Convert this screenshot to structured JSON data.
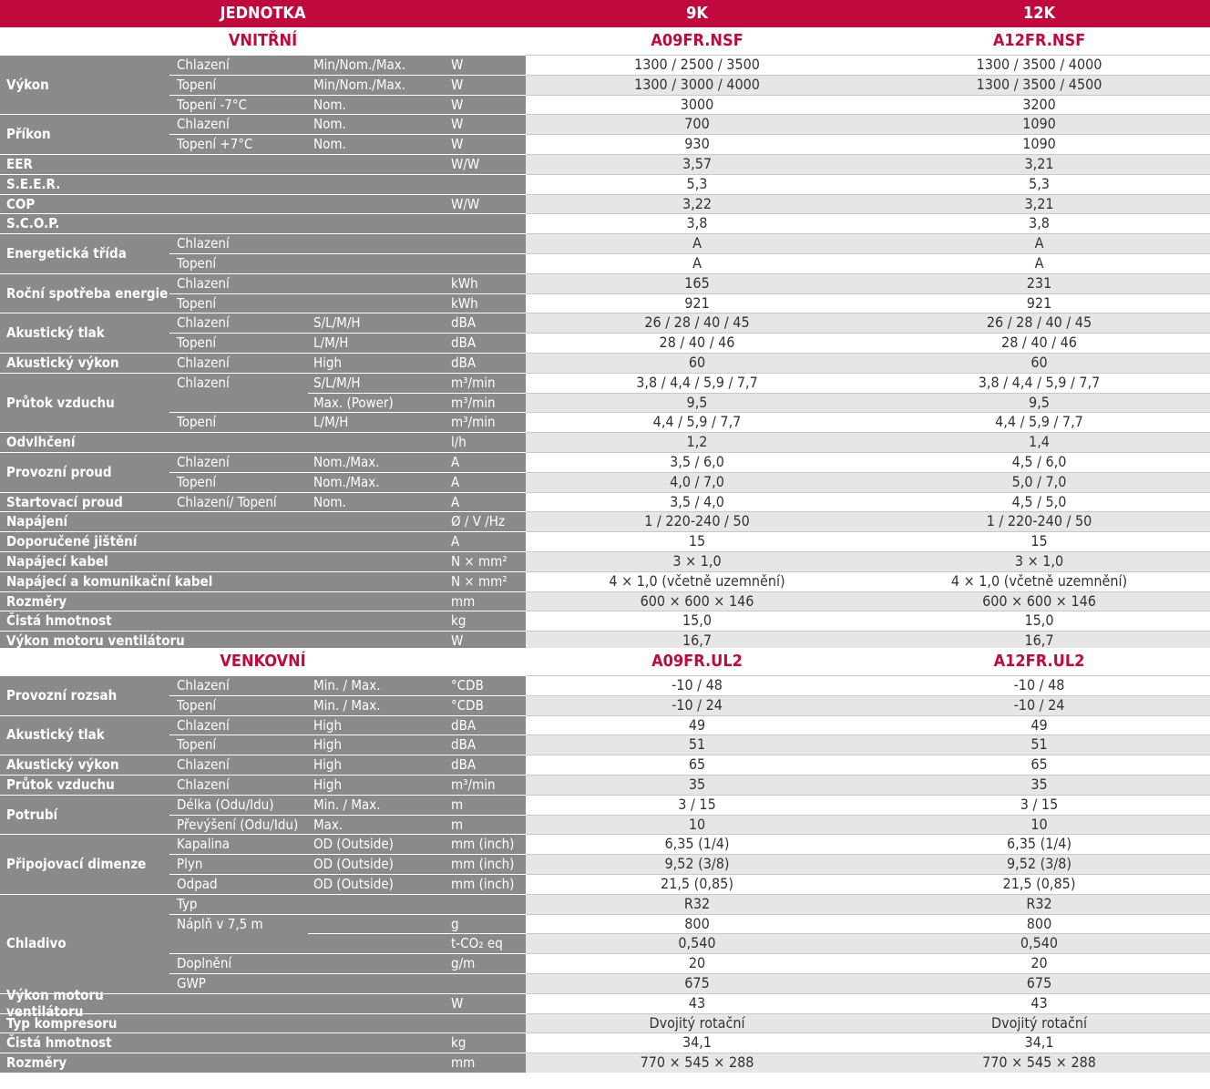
{
  "header": {
    "unit_label": "JEDNOTKA",
    "col1": "9K",
    "col2": "12K"
  },
  "indoor": {
    "title": "VNITŘNÍ",
    "model1": "A09FR.NSF",
    "model2": "A12FR.NSF",
    "rows": [
      {
        "g": "Výkon",
        "l1": "Chlazení",
        "l2": "Min/Nom./Max.",
        "u": "W",
        "v1": "1300 / 2500 / 3500",
        "v2": "1300 / 3500 / 4000"
      },
      {
        "g": "",
        "l1": "Topení",
        "l2": "Min/Nom./Max.",
        "u": "W",
        "v1": "1300 / 3000 / 4000",
        "v2": "1300 / 3500 / 4500"
      },
      {
        "g": "",
        "l1": "Topení -7°C",
        "l2": "Nom.",
        "u": "W",
        "v1": "3000",
        "v2": "3200"
      },
      {
        "g": "Příkon",
        "l1": "Chlazení",
        "l2": "Nom.",
        "u": "W",
        "v1": "700",
        "v2": "1090"
      },
      {
        "g": "",
        "l1": "Topení +7°C",
        "l2": "Nom.",
        "u": "W",
        "v1": "930",
        "v2": "1090"
      },
      {
        "g": "EER",
        "l1": "",
        "l2": "",
        "u": "W/W",
        "v1": "3,57",
        "v2": "3,21"
      },
      {
        "g": "S.E.E.R.",
        "l1": "",
        "l2": "",
        "u": "",
        "v1": "5,3",
        "v2": "5,3"
      },
      {
        "g": "COP",
        "l1": "",
        "l2": "",
        "u": "W/W",
        "v1": "3,22",
        "v2": "3,21"
      },
      {
        "g": "S.C.O.P.",
        "l1": "",
        "l2": "",
        "u": "",
        "v1": "3,8",
        "v2": "3,8"
      },
      {
        "g": "Energetická třída",
        "l1": "Chlazení",
        "l2": "",
        "u": "",
        "v1": "A",
        "v2": "A"
      },
      {
        "g": "",
        "l1": "Topení",
        "l2": "",
        "u": "",
        "v1": "A",
        "v2": "A"
      },
      {
        "g": "Roční spotřeba energie",
        "l1": "Chlazení",
        "l2": "",
        "u": "kWh",
        "v1": "165",
        "v2": "231"
      },
      {
        "g": "",
        "l1": "Topení",
        "l2": "",
        "u": "kWh",
        "v1": "921",
        "v2": "921"
      },
      {
        "g": "Akustický tlak",
        "l1": "Chlazení",
        "l2": "S/L/M/H",
        "u": "dBA",
        "v1": "26 / 28 / 40 / 45",
        "v2": "26 / 28 / 40 / 45"
      },
      {
        "g": "",
        "l1": "Topení",
        "l2": "L/M/H",
        "u": "dBA",
        "v1": "28 / 40 / 46",
        "v2": "28 / 40 / 46"
      },
      {
        "g": "Akustický výkon",
        "l1": "Chlazení",
        "l2": "High",
        "u": "dBA",
        "v1": "60",
        "v2": "60"
      },
      {
        "g": "Průtok vzduchu",
        "l1": "Chlazení",
        "l2": "S/L/M/H",
        "u": "m³/min",
        "v1": "3,8 / 4,4 / 5,9 / 7,7",
        "v2": "3,8 / 4,4 / 5,9 / 7,7"
      },
      {
        "g": "",
        "l1": "",
        "l2": "Max. (Power)",
        "u": "m³/min",
        "v1": "9,5",
        "v2": "9,5"
      },
      {
        "g": "",
        "l1": "Topení",
        "l2": "L/M/H",
        "u": "m³/min",
        "v1": "4,4 / 5,9 / 7,7",
        "v2": "4,4 / 5,9 / 7,7"
      },
      {
        "g": "Odvlhčení",
        "l1": "",
        "l2": "",
        "u": "l/h",
        "v1": "1,2",
        "v2": "1,4"
      },
      {
        "g": "Provozní proud",
        "l1": "Chlazení",
        "l2": "Nom./Max.",
        "u": "A",
        "v1": "3,5 / 6,0",
        "v2": "4,5 / 6,0"
      },
      {
        "g": "",
        "l1": "Topení",
        "l2": "Nom./Max.",
        "u": "A",
        "v1": "4,0 / 7,0",
        "v2": "5,0 / 7,0"
      },
      {
        "g": "Startovací proud",
        "l1": "Chlazení/ Topení",
        "l2": "Nom.",
        "u": "A",
        "v1": "3,5 / 4,0",
        "v2": "4,5 / 5,0"
      },
      {
        "g": "Napájení",
        "l1": "",
        "l2": "",
        "u": "Ø / V /Hz",
        "v1": "1 / 220-240 / 50",
        "v2": "1 / 220-240 / 50"
      },
      {
        "g": "Doporučené jištění",
        "l1": "",
        "l2": "",
        "u": "A",
        "v1": "15",
        "v2": "15"
      },
      {
        "g": "Napájecí kabel",
        "l1": "",
        "l2": "",
        "u": "N × mm²",
        "v1": "3 × 1,0",
        "v2": "3 × 1,0"
      },
      {
        "g": "Napájecí a komunikační kabel",
        "l1": "",
        "l2": "",
        "u": "N × mm²",
        "v1": "4 × 1,0 (včetně uzemnění)",
        "v2": "4 × 1,0 (včetně uzemnění)"
      },
      {
        "g": "Rozměry",
        "l1": "",
        "l2": "",
        "u": "mm",
        "v1": "600 × 600 × 146",
        "v2": "600 × 600 × 146"
      },
      {
        "g": "Čistá hmotnost",
        "l1": "",
        "l2": "",
        "u": "kg",
        "v1": "15,0",
        "v2": "15,0"
      },
      {
        "g": "Výkon motoru ventilátoru",
        "l1": "",
        "l2": "",
        "u": "W",
        "v1": "16,7",
        "v2": "16,7"
      }
    ]
  },
  "outdoor": {
    "title": "VENKOVNÍ",
    "model1": "A09FR.UL2",
    "model2": "A12FR.UL2",
    "rows": [
      {
        "g": "Provozní rozsah",
        "l1": "Chlazení",
        "l2": "Min. / Max.",
        "u": "°CDB",
        "v1": "-10 / 48",
        "v2": "-10 / 48"
      },
      {
        "g": "",
        "l1": "Topení",
        "l2": "Min. / Max.",
        "u": "°CDB",
        "v1": "-10 / 24",
        "v2": "-10 / 24"
      },
      {
        "g": "Akustický tlak",
        "l1": "Chlazení",
        "l2": "High",
        "u": "dBA",
        "v1": "49",
        "v2": "49"
      },
      {
        "g": "",
        "l1": "Topení",
        "l2": "High",
        "u": "dBA",
        "v1": "51",
        "v2": "51"
      },
      {
        "g": "Akustický výkon",
        "l1": "Chlazení",
        "l2": "High",
        "u": "dBA",
        "v1": "65",
        "v2": "65"
      },
      {
        "g": "Průtok vzduchu",
        "l1": "Chlazení",
        "l2": "High",
        "u": "m³/min",
        "v1": "35",
        "v2": "35"
      },
      {
        "g": "Potrubí",
        "l1": "Délka (Odu/Idu)",
        "l2": "Min. / Max.",
        "u": "m",
        "v1": "3 / 15",
        "v2": "3 / 15"
      },
      {
        "g": "",
        "l1": "Převýšení (Odu/Idu)",
        "l2": "Max.",
        "u": "m",
        "v1": "10",
        "v2": "10"
      },
      {
        "g": "Připojovací dimenze",
        "l1": "Kapalina",
        "l2": "OD (Outside)",
        "u": "mm (inch)",
        "v1": "6,35 (1/4)",
        "v2": "6,35 (1/4)"
      },
      {
        "g": "",
        "l1": "Plyn",
        "l2": "OD (Outside)",
        "u": "mm (inch)",
        "v1": "9,52 (3/8)",
        "v2": "9,52 (3/8)"
      },
      {
        "g": "",
        "l1": "Odpad",
        "l2": "OD (Outside)",
        "u": "mm (inch)",
        "v1": "21,5 (0,85)",
        "v2": "21,5 (0,85)"
      },
      {
        "g": "Chladivo",
        "l1": "Typ",
        "l2": "",
        "u": "",
        "v1": "R32",
        "v2": "R32"
      },
      {
        "g": "",
        "l1": "Náplň v 7,5 m",
        "l2": "",
        "u": "g",
        "v1": "800",
        "v2": "800"
      },
      {
        "g": "",
        "l1": "",
        "l2": "",
        "u": "t-CO₂ eq",
        "v1": "0,540",
        "v2": "0,540"
      },
      {
        "g": "",
        "l1": "Doplnění",
        "l2": "",
        "u": "g/m",
        "v1": "20",
        "v2": "20"
      },
      {
        "g": "",
        "l1": "GWP",
        "l2": "",
        "u": "",
        "v1": "675",
        "v2": "675"
      },
      {
        "g": "Výkon motoru ventilátoru",
        "l1": "",
        "l2": "",
        "u": "W",
        "v1": "43",
        "v2": "43"
      },
      {
        "g": "Typ kompresoru",
        "l1": "",
        "l2": "",
        "u": "",
        "v1": "Dvojitý rotační",
        "v2": "Dvojitý rotační"
      },
      {
        "g": "Čistá hmotnost",
        "l1": "",
        "l2": "",
        "u": "kg",
        "v1": "34,1",
        "v2": "34,1"
      },
      {
        "g": "Rozměry",
        "l1": "",
        "l2": "",
        "u": "mm",
        "v1": "770 × 545 × 288",
        "v2": "770 × 545 × 288"
      }
    ]
  }
}
